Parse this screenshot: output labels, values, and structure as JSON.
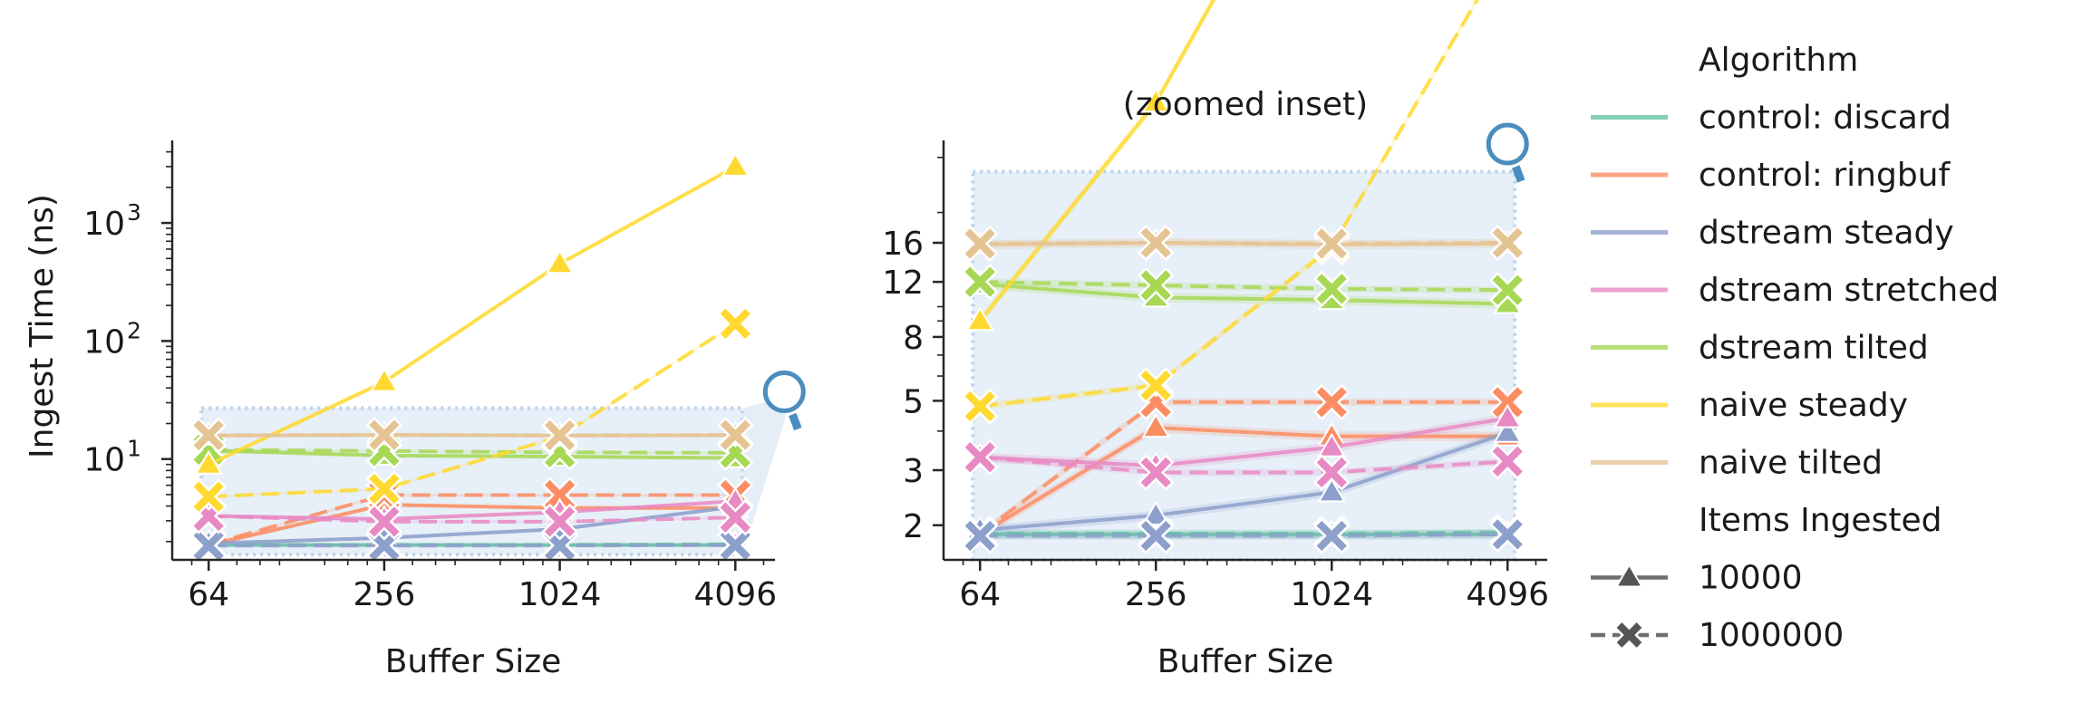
{
  "chart_data": [
    {
      "type": "line",
      "title": "",
      "xlabel": "Buffer Size",
      "ylabel": "Ingest Time (ns)",
      "xscale": "log2",
      "yscale": "log10",
      "x": [
        64,
        256,
        1024,
        4096
      ],
      "x_ticklabels": [
        "64",
        "256",
        "1024",
        "4096"
      ],
      "y_ticks": [
        10,
        100,
        1000
      ],
      "y_ticklabels": [
        [
          "10",
          "1"
        ],
        [
          "10",
          "2"
        ],
        [
          "10",
          "3"
        ]
      ],
      "xlim": [
        48,
        5600
      ],
      "ylim": [
        1.4,
        5000
      ],
      "grid": false
    },
    {
      "type": "line",
      "title": "(zoomed inset)",
      "xlabel": "Buffer Size",
      "ylabel": "",
      "xscale": "log2",
      "yscale": "log10",
      "x": [
        64,
        256,
        1024,
        4096
      ],
      "x_ticklabels": [
        "64",
        "256",
        "1024",
        "4096"
      ],
      "y_ticks": [
        2,
        3,
        5,
        8,
        12,
        16
      ],
      "y_ticklabels": [
        "2",
        "3",
        "5",
        "8",
        "12",
        "16"
      ],
      "xlim": [
        48,
        5600
      ],
      "ylim": [
        1.55,
        34
      ],
      "grid": false
    }
  ],
  "series": [
    {
      "name": "control: discard",
      "color": "#66c2a5",
      "items": "10000",
      "values": [
        1.87,
        1.87,
        1.87,
        1.87
      ]
    },
    {
      "name": "control: discard",
      "color": "#66c2a5",
      "items": "1000000",
      "values": [
        1.88,
        1.88,
        1.88,
        1.9
      ]
    },
    {
      "name": "control: ringbuf",
      "color": "#fc8d62",
      "items": "10000",
      "values": [
        1.87,
        4.1,
        3.85,
        3.85
      ]
    },
    {
      "name": "control: ringbuf",
      "color": "#fc8d62",
      "items": "1000000",
      "values": [
        1.88,
        4.95,
        4.95,
        4.95
      ]
    },
    {
      "name": "dstream steady",
      "color": "#8da0cb",
      "items": "10000",
      "values": [
        1.93,
        2.15,
        2.55,
        3.95
      ]
    },
    {
      "name": "dstream steady",
      "color": "#8da0cb",
      "items": "1000000",
      "values": [
        1.85,
        1.85,
        1.85,
        1.87
      ]
    },
    {
      "name": "dstream stretched",
      "color": "#e78ac3",
      "items": "10000",
      "values": [
        3.3,
        3.1,
        3.55,
        4.4
      ]
    },
    {
      "name": "dstream stretched",
      "color": "#e78ac3",
      "items": "1000000",
      "values": [
        3.3,
        2.95,
        2.95,
        3.2
      ]
    },
    {
      "name": "dstream tilted",
      "color": "#a6d854",
      "items": "10000",
      "values": [
        11.8,
        10.7,
        10.5,
        10.2
      ]
    },
    {
      "name": "dstream tilted",
      "color": "#a6d854",
      "items": "1000000",
      "values": [
        12.0,
        11.7,
        11.4,
        11.3
      ]
    },
    {
      "name": "naive steady",
      "color": "#ffd92f",
      "items": "10000",
      "values": [
        9.0,
        45,
        450,
        3000
      ]
    },
    {
      "name": "naive steady",
      "color": "#ffd92f",
      "items": "1000000",
      "values": [
        4.8,
        5.6,
        15.5,
        140
      ]
    },
    {
      "name": "naive tilted",
      "color": "#e5c494",
      "items": "10000",
      "values": [
        15.8,
        16.0,
        15.8,
        15.9
      ]
    },
    {
      "name": "naive tilted",
      "color": "#e5c494",
      "items": "1000000",
      "values": [
        15.9,
        16.0,
        15.9,
        16.0
      ]
    }
  ],
  "legend": {
    "placement": "right",
    "algorithm_title": "Algorithm",
    "algorithms": [
      {
        "label": "control: discard",
        "color": "#66c2a5"
      },
      {
        "label": "control: ringbuf",
        "color": "#fc8d62"
      },
      {
        "label": "dstream steady",
        "color": "#8da0cb"
      },
      {
        "label": "dstream stretched",
        "color": "#e78ac3"
      },
      {
        "label": "dstream tilted",
        "color": "#a6d854"
      },
      {
        "label": "naive steady",
        "color": "#ffd92f"
      },
      {
        "label": "naive tilted",
        "color": "#e5c494"
      }
    ],
    "items_title": "Items Ingested",
    "items": [
      {
        "label": "10000",
        "marker": "triangle",
        "dash": "solid"
      },
      {
        "label": "1000000",
        "marker": "x",
        "dash": "dashed"
      }
    ]
  },
  "inset": {
    "region_ylim": [
      1.55,
      27
    ],
    "region_color": "#cfe0f1",
    "icon": "magnifier-icon",
    "icon_color": "#4a8dbf"
  }
}
